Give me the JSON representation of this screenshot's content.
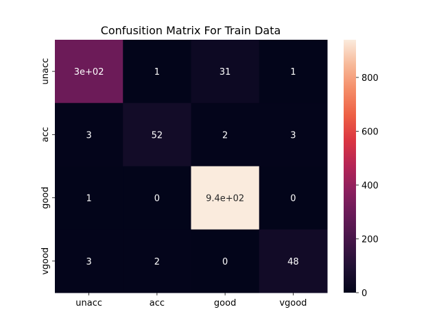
{
  "chart_data": {
    "type": "heatmap",
    "title": "Confusition Matrix For Train Data",
    "xlabel": "",
    "ylabel": "",
    "x_categories": [
      "unacc",
      "acc",
      "good",
      "vgood"
    ],
    "y_categories": [
      "unacc",
      "acc",
      "good",
      "vgood"
    ],
    "values": [
      [
        300,
        1,
        31,
        1
      ],
      [
        3,
        52,
        2,
        3
      ],
      [
        1,
        0,
        940,
        0
      ],
      [
        3,
        2,
        0,
        48
      ]
    ],
    "annotations": [
      [
        "3e+02",
        "1",
        "31",
        "1"
      ],
      [
        "3",
        "52",
        "2",
        "3"
      ],
      [
        "1",
        "0",
        "9.4e+02",
        "0"
      ],
      [
        "3",
        "2",
        "0",
        "48"
      ]
    ],
    "colorbar": {
      "range": [
        0,
        940
      ],
      "ticks": [
        0,
        200,
        400,
        600,
        800
      ],
      "tick_labels": [
        "0",
        "200",
        "400",
        "600",
        "800"
      ],
      "colormap": "rocket"
    }
  }
}
